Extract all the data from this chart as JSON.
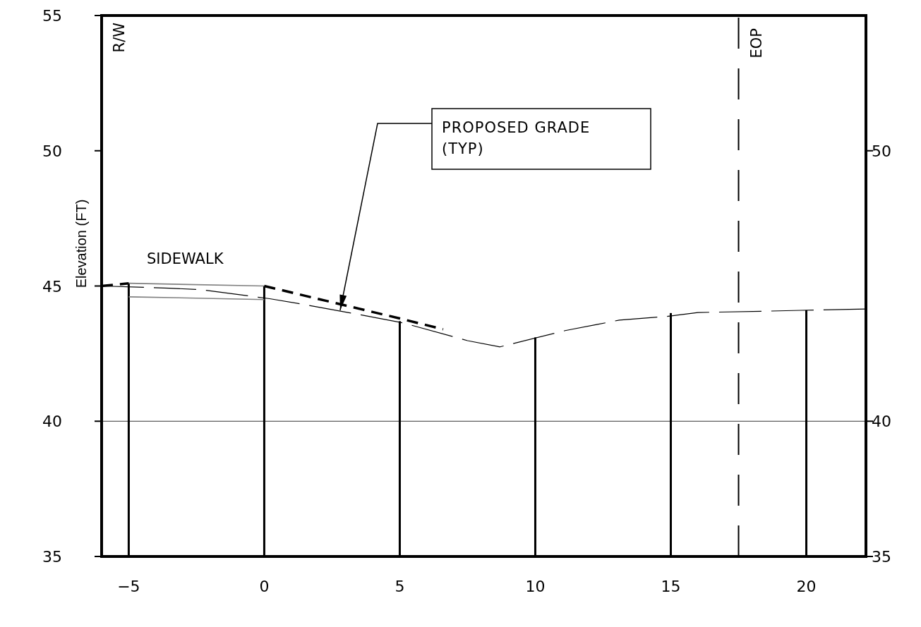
{
  "chart_data": {
    "type": "line",
    "ylabel": "Elevation (FT)",
    "xlim": [
      -6,
      22.2
    ],
    "xticks": [
      -5,
      0,
      5,
      10,
      15,
      20
    ],
    "ylim": [
      35,
      55
    ],
    "yticks": [
      35,
      40,
      45,
      50,
      55
    ],
    "y2lim": [
      35,
      55
    ],
    "y2ticks": [
      35,
      40,
      50
    ],
    "grid": false,
    "marker": "none",
    "series": [
      {
        "type": "bar",
        "color": "#000000",
        "x": [
          -5,
          0,
          5,
          10,
          15,
          20
        ],
        "values": [
          45.1,
          45.0,
          43.7,
          43.1,
          44.0,
          44.1
        ]
      },
      {
        "color": "#000000",
        "line_style": "dashed",
        "x": [
          -6,
          -3.5,
          -2.3,
          0.2,
          1.5,
          3.9,
          5.1,
          7.5,
          8.7,
          11.1,
          12.3,
          13.1,
          14.8,
          16.0,
          18.5,
          19.8,
          22.2
        ],
        "values": [
          45.0,
          44.92,
          44.86,
          44.53,
          44.31,
          43.87,
          43.64,
          42.98,
          42.75,
          43.35,
          43.58,
          43.74,
          43.87,
          44.02,
          44.07,
          44.1,
          44.15
        ]
      },
      {
        "color": "#808080",
        "line_style": "solid",
        "x": [
          -5,
          0
        ],
        "values": [
          45.1,
          45.0
        ]
      },
      {
        "color": "#808080",
        "line_style": "solid",
        "x": [
          -5,
          0
        ],
        "values": [
          44.6,
          44.5
        ]
      },
      {
        "color": "#000000",
        "line_style": "dashed",
        "x": [
          -6,
          -5
        ],
        "values": [
          45.0,
          45.1
        ]
      },
      {
        "color": "#000000",
        "line_style": "dashed",
        "x": [
          0,
          5,
          6.6
        ],
        "values": [
          45.0,
          43.8,
          43.4
        ]
      }
    ],
    "ref_lines": [
      {
        "axis": "y",
        "value": 40,
        "color": "#000000",
        "line_style": "solid"
      },
      {
        "axis": "x",
        "value": 17.5,
        "label": "EOP",
        "color": "#000000",
        "line_style": "dashed"
      }
    ],
    "annotations": [
      "R/W",
      "SIDEWALK",
      {
        "text": "PROPOSED GRADE\n(TYP)",
        "x": 2.8,
        "y": 44.1
      }
    ]
  }
}
